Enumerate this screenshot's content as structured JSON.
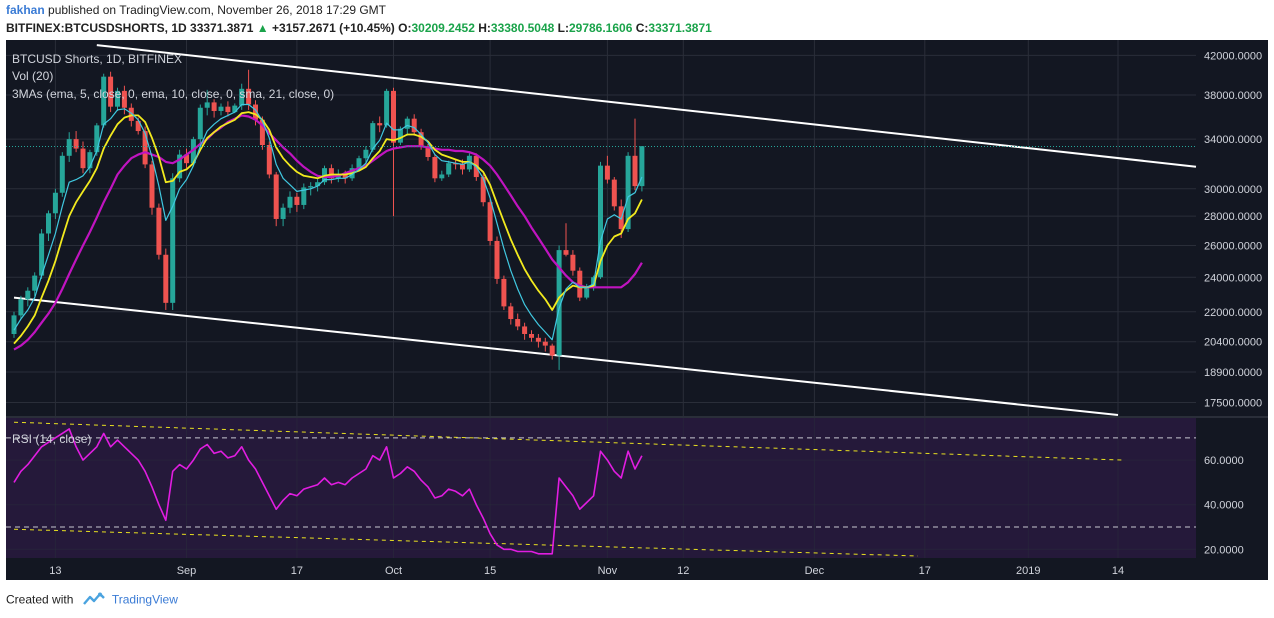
{
  "header": {
    "author": "fakhan",
    "published": "published on TradingView.com, November 26, 2018 17:29 GMT",
    "symbol": "BITFINEX:BTCUSDSHORTS, 1D",
    "last": "33371.3871",
    "change": "+3157.2671 (+10.45%)",
    "o_label": "O:",
    "o_value": "30209.2452",
    "h_label": "H:",
    "h_value": "33380.5048",
    "l_label": "L:",
    "l_value": "29786.1606",
    "c_label": "C:",
    "c_value": "33371.3871"
  },
  "legend": {
    "title": "BTCUSD Shorts, 1D, BITFINEX",
    "vol": "Vol (20)",
    "mas": "3MAs (ema, 5, close, 0, ema, 10, close, 0, sma, 21, close, 0)",
    "rsi": "RSI (14, close)"
  },
  "footer": {
    "created_with": "Created with",
    "brand": "TradingView"
  },
  "colors": {
    "background": "#131722",
    "rsi_band": "#25193a",
    "grid": "#2a2e39",
    "candle_up": "#26a69a",
    "candle_down": "#ef5350",
    "ema5": "#40c8e0",
    "ema10": "#f2ea1e",
    "sma21": "#c014c0",
    "rsi": "#e11de1",
    "trendline": "#ffffff",
    "rsi_trend": "#e8e020",
    "last_price": "#26a69a"
  },
  "chart_data": {
    "type": "candlestick",
    "price_axis": {
      "type": "log",
      "ticks": [
        "42000.0000",
        "38000.0000",
        "34000.0000",
        "30000.0000",
        "28000.0000",
        "26000.0000",
        "24000.0000",
        "22000.0000",
        "20400.0000",
        "18900.0000",
        "17500.0000"
      ],
      "range": [
        17000,
        43000
      ]
    },
    "rsi_axis": {
      "ticks": [
        "60.0000",
        "40.0000",
        "20.0000"
      ],
      "range": [
        17,
        78
      ],
      "levels": [
        70,
        30
      ]
    },
    "x_ticks": [
      "13",
      "Sep",
      "17",
      "Oct",
      "15",
      "Nov",
      "12",
      "Dec",
      "17",
      "2019",
      "14"
    ],
    "x_start": "2018-08-07",
    "last_price": 33371.3871,
    "candles": [
      [
        20800,
        22000,
        20600,
        21800
      ],
      [
        21800,
        22900,
        21600,
        22700
      ],
      [
        22700,
        23400,
        22300,
        23200
      ],
      [
        23200,
        24300,
        22900,
        24100
      ],
      [
        24100,
        27100,
        23900,
        26800
      ],
      [
        26800,
        28400,
        26300,
        28200
      ],
      [
        28200,
        30000,
        27800,
        29700
      ],
      [
        29700,
        32900,
        29400,
        32600
      ],
      [
        32600,
        34600,
        32100,
        34000
      ],
      [
        34000,
        34700,
        32900,
        33200
      ],
      [
        33200,
        33800,
        31200,
        31600
      ],
      [
        31600,
        33100,
        31200,
        32900
      ],
      [
        32900,
        35400,
        32600,
        35200
      ],
      [
        35200,
        40100,
        35000,
        39800
      ],
      [
        39800,
        40300,
        36400,
        36900
      ],
      [
        36900,
        38700,
        36500,
        38400
      ],
      [
        38400,
        38900,
        36200,
        36800
      ],
      [
        36800,
        37200,
        35100,
        35600
      ],
      [
        35600,
        35900,
        34400,
        34700
      ],
      [
        34700,
        35100,
        31600,
        31900
      ],
      [
        31900,
        32200,
        28100,
        28600
      ],
      [
        28600,
        28900,
        25100,
        25400
      ],
      [
        25400,
        25800,
        22100,
        22500
      ],
      [
        22500,
        31200,
        22100,
        30800
      ],
      [
        30800,
        33100,
        30500,
        32700
      ],
      [
        32700,
        33200,
        31600,
        32000
      ],
      [
        32000,
        34200,
        31800,
        34000
      ],
      [
        34000,
        37100,
        33600,
        36800
      ],
      [
        36800,
        38500,
        36100,
        37300
      ],
      [
        37300,
        37600,
        35900,
        36500
      ],
      [
        36500,
        37200,
        36100,
        36900
      ],
      [
        36900,
        37400,
        36000,
        36400
      ],
      [
        36400,
        37200,
        36300,
        37000
      ],
      [
        37000,
        39100,
        36600,
        38600
      ],
      [
        38600,
        40500,
        36600,
        37100
      ],
      [
        37100,
        37500,
        35200,
        35700
      ],
      [
        35700,
        36000,
        33100,
        33500
      ],
      [
        33500,
        33800,
        30800,
        31100
      ],
      [
        31100,
        31300,
        27300,
        27800
      ],
      [
        27800,
        28900,
        27300,
        28600
      ],
      [
        28600,
        29800,
        28200,
        29400
      ],
      [
        29400,
        29700,
        28300,
        28800
      ],
      [
        28800,
        30400,
        28500,
        30100
      ],
      [
        30100,
        30500,
        29500,
        30200
      ],
      [
        30200,
        30800,
        29800,
        30500
      ],
      [
        30500,
        31800,
        30300,
        31600
      ],
      [
        31600,
        31900,
        30400,
        30800
      ],
      [
        30800,
        31500,
        30500,
        31100
      ],
      [
        31100,
        31400,
        30400,
        30800
      ],
      [
        30800,
        31900,
        30600,
        31600
      ],
      [
        31600,
        32600,
        31400,
        32400
      ],
      [
        32400,
        33400,
        31800,
        33100
      ],
      [
        33100,
        35600,
        32900,
        35400
      ],
      [
        35400,
        36000,
        34600,
        35200
      ],
      [
        35200,
        38600,
        35000,
        38400
      ],
      [
        38400,
        38700,
        28000,
        33700
      ],
      [
        33700,
        35100,
        33500,
        34900
      ],
      [
        34900,
        36000,
        34300,
        35800
      ],
      [
        35800,
        36200,
        34300,
        34600
      ],
      [
        34600,
        34900,
        33100,
        33400
      ],
      [
        33400,
        33600,
        32200,
        32500
      ],
      [
        32500,
        32700,
        30500,
        30800
      ],
      [
        30800,
        31400,
        30600,
        31100
      ],
      [
        31100,
        32200,
        30900,
        32000
      ],
      [
        32000,
        32300,
        31500,
        31900
      ],
      [
        31900,
        32300,
        31100,
        31500
      ],
      [
        31500,
        32800,
        31300,
        32600
      ],
      [
        32600,
        32800,
        30600,
        30900
      ],
      [
        30900,
        31100,
        28700,
        29000
      ],
      [
        29000,
        29200,
        26000,
        26300
      ],
      [
        26300,
        26600,
        23600,
        23900
      ],
      [
        23900,
        24100,
        22100,
        22300
      ],
      [
        22300,
        22500,
        21300,
        21600
      ],
      [
        21600,
        21900,
        21000,
        21200
      ],
      [
        21200,
        21400,
        20500,
        20800
      ],
      [
        20800,
        21000,
        20400,
        20600
      ],
      [
        20600,
        20800,
        20100,
        20400
      ],
      [
        20400,
        20600,
        19900,
        20200
      ],
      [
        20200,
        20300,
        19500,
        19700
      ],
      [
        19700,
        26000,
        19000,
        25700
      ],
      [
        25700,
        27500,
        25300,
        25400
      ],
      [
        25400,
        25700,
        24100,
        24400
      ],
      [
        24400,
        24600,
        22600,
        22800
      ],
      [
        22800,
        23600,
        22700,
        23400
      ],
      [
        23400,
        24100,
        23200,
        24000
      ],
      [
        24000,
        32100,
        23900,
        31800
      ],
      [
        31800,
        32600,
        30400,
        30700
      ],
      [
        30700,
        30900,
        28400,
        28700
      ],
      [
        28700,
        29200,
        26500,
        27100
      ],
      [
        27100,
        32900,
        26900,
        32600
      ],
      [
        32600,
        35800,
        29900,
        30200
      ],
      [
        30200,
        33400,
        29800,
        33400
      ]
    ],
    "ema5": [
      21000,
      21600,
      22100,
      22800,
      24100,
      25400,
      26800,
      28700,
      30500,
      30700,
      31000,
      31700,
      33000,
      35300,
      35800,
      36600,
      36700,
      36300,
      35700,
      34500,
      32500,
      30200,
      27700,
      28700,
      30000,
      30700,
      31800,
      33400,
      34700,
      35300,
      35800,
      36100,
      36400,
      37100,
      37100,
      36600,
      35600,
      34100,
      31900,
      30800,
      30300,
      29800,
      29900,
      30000,
      30200,
      30700,
      30700,
      30800,
      30800,
      31100,
      31500,
      32000,
      33200,
      33900,
      35400,
      34800,
      34800,
      35200,
      35000,
      34400,
      33700,
      32700,
      32200,
      32100,
      32000,
      31900,
      32100,
      31700,
      30800,
      29300,
      27500,
      25800,
      24400,
      23300,
      22400,
      21800,
      21300,
      20900,
      20500,
      22200,
      23300,
      23700,
      23400,
      23400,
      23600,
      26300,
      27800,
      28100,
      27800,
      29400,
      29700,
      30900
    ],
    "ema10": [
      20300,
      20700,
      21200,
      21800,
      22800,
      23800,
      25000,
      26500,
      28000,
      29000,
      29800,
      30600,
      31600,
      33200,
      34300,
      35300,
      35900,
      36100,
      36100,
      35500,
      34100,
      32500,
      30500,
      30600,
      31300,
      31500,
      32000,
      33100,
      34100,
      34600,
      35100,
      35400,
      35700,
      36300,
      36400,
      36200,
      35700,
      34800,
      33300,
      32400,
      31800,
      31300,
      31000,
      30900,
      30800,
      31000,
      31100,
      31100,
      31100,
      31200,
      31400,
      31700,
      32400,
      33000,
      34000,
      33900,
      34100,
      34400,
      34400,
      34200,
      33800,
      33100,
      32700,
      32500,
      32300,
      32100,
      32100,
      31800,
      31300,
      30300,
      28900,
      27600,
      26400,
      25400,
      24500,
      23800,
      23200,
      22700,
      22100,
      22800,
      23200,
      23500,
      23400,
      23400,
      23500,
      25000,
      26000,
      26600,
      26800,
      27800,
      28200,
      29200
    ],
    "sma21": [
      20000,
      20200,
      20500,
      20900,
      21400,
      21900,
      22500,
      23300,
      24200,
      25100,
      26000,
      26900,
      27900,
      29000,
      30000,
      31100,
      31800,
      32400,
      32700,
      32900,
      32700,
      32500,
      32100,
      32000,
      32300,
      32700,
      33100,
      33600,
      34000,
      34600,
      35000,
      35500,
      35800,
      36100,
      36000,
      35700,
      35200,
      34500,
      33900,
      33300,
      32800,
      32200,
      31700,
      31300,
      31000,
      30900,
      30900,
      31000,
      31200,
      31400,
      31600,
      31800,
      32200,
      32600,
      33000,
      33200,
      33300,
      33400,
      33400,
      33400,
      33300,
      33200,
      33100,
      33100,
      33000,
      33000,
      32900,
      32700,
      32300,
      31800,
      31100,
      30300,
      29500,
      28700,
      28000,
      27200,
      26500,
      25800,
      25100,
      24600,
      24100,
      23700,
      23500,
      23400,
      23400,
      23400,
      23400,
      23400,
      23400,
      23700,
      24200,
      24900
    ],
    "rsi": [
      50,
      55,
      58,
      62,
      66,
      68,
      70,
      72,
      74,
      66,
      60,
      63,
      66,
      72,
      66,
      69,
      66,
      63,
      60,
      55,
      48,
      40,
      33,
      55,
      58,
      56,
      60,
      65,
      67,
      63,
      64,
      61,
      62,
      66,
      60,
      56,
      50,
      44,
      38,
      42,
      45,
      44,
      47,
      48,
      49,
      52,
      49,
      50,
      49,
      52,
      54,
      56,
      62,
      60,
      66,
      52,
      54,
      57,
      55,
      51,
      48,
      43,
      44,
      47,
      46,
      44,
      47,
      40,
      34,
      27,
      22,
      20,
      20,
      19,
      19,
      19,
      18,
      18,
      18,
      52,
      48,
      44,
      38,
      41,
      44,
      64,
      60,
      55,
      52,
      64,
      56,
      62
    ],
    "trendlines": [
      {
        "name": "upper",
        "points": [
          [
            "2018-08-19",
            43100
          ],
          [
            "2018-12-31",
            33300
          ]
        ]
      },
      {
        "name": "lower",
        "points": [
          [
            "2018-08-07",
            22800
          ],
          [
            "2018-12-31",
            17400
          ]
        ]
      }
    ],
    "rsi_trendlines": [
      {
        "name": "upper",
        "points": [
          [
            "2018-08-07",
            77
          ],
          [
            "2019-01-15",
            60
          ]
        ]
      },
      {
        "name": "lower",
        "points": [
          [
            "2018-08-07",
            29
          ],
          [
            "2018-12-16",
            17
          ]
        ]
      }
    ]
  }
}
